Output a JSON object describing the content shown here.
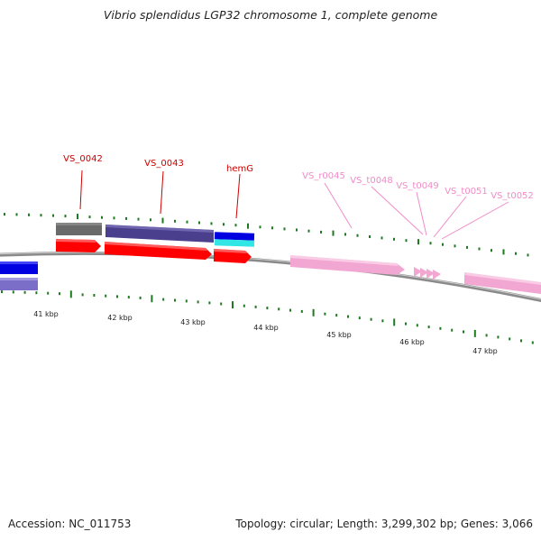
{
  "title": "Vibrio splendidus LGP32 chromosome 1, complete genome",
  "accession": "Accession: NC_011753",
  "summary": "Topology: circular; Length: 3,299,302 bp; Genes: 3,066",
  "colors": {
    "backbone": "#8a8a8a",
    "tick": "#1e7a1e",
    "label_gene": "#cc0000",
    "label_rna": "#f08cc8",
    "cds": "#ff0000",
    "gene_grey": "#6a6a6a",
    "gene_purple": "#4a3f8c",
    "gene_blue": "#0000e0",
    "gene_cyan": "#33e6e6",
    "rna_pink": "#f2a6d2",
    "gene_lavender": "#7a6ec8"
  },
  "scale": {
    "ticks": [
      {
        "label": "41 kbp"
      },
      {
        "label": "42 kbp"
      },
      {
        "label": "43 kbp"
      },
      {
        "label": "44 kbp"
      },
      {
        "label": "45 kbp"
      },
      {
        "label": "46 kbp"
      },
      {
        "label": "47 kbp"
      }
    ]
  },
  "features": [
    {
      "label": "VS_0042",
      "kind": "gene"
    },
    {
      "label": "VS_0043",
      "kind": "gene"
    },
    {
      "label": "hemG",
      "kind": "gene"
    },
    {
      "label": "VS_r0045",
      "kind": "rna"
    },
    {
      "label": "VS_t0048",
      "kind": "rna"
    },
    {
      "label": "VS_t0049",
      "kind": "rna"
    },
    {
      "label": "VS_t0051",
      "kind": "rna"
    },
    {
      "label": "VS_t0052",
      "kind": "rna"
    }
  ]
}
